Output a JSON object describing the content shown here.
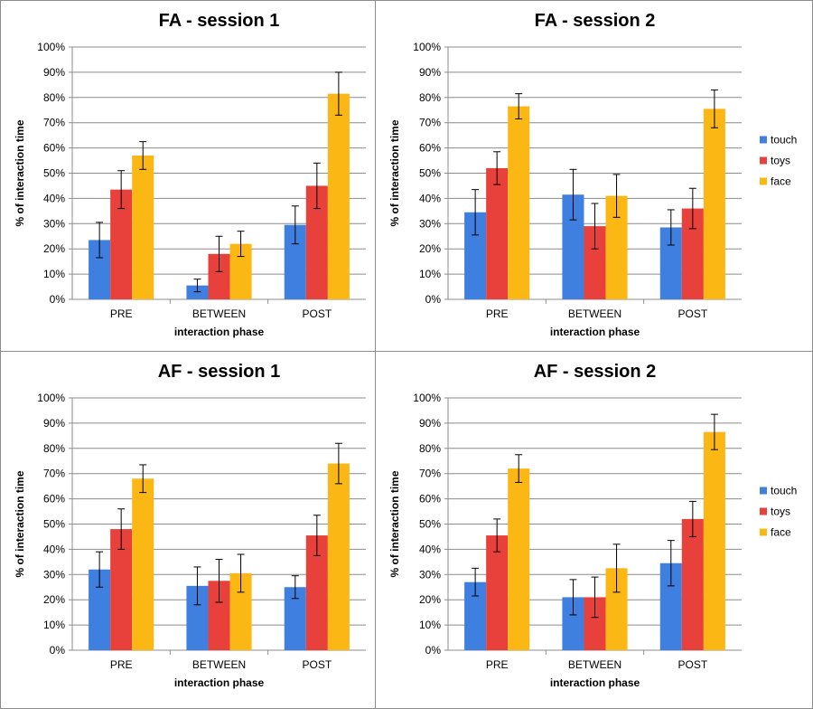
{
  "chart_data": [
    {
      "type": "bar",
      "title": "FA - session 1",
      "xlabel": "interaction phase",
      "ylabel": "% of interaction time",
      "ylim": [
        0,
        100
      ],
      "yticks": [
        "0%",
        "10%",
        "20%",
        "30%",
        "40%",
        "50%",
        "60%",
        "70%",
        "80%",
        "90%",
        "100%"
      ],
      "categories": [
        "PRE",
        "BETWEEN",
        "POST"
      ],
      "grid": true,
      "legend": "none",
      "series": [
        {
          "name": "touch",
          "color": "#3f7fe0",
          "values": [
            23.5,
            5.5,
            29.5
          ],
          "errors": [
            7,
            2.5,
            7.5
          ]
        },
        {
          "name": "toys",
          "color": "#e8413c",
          "values": [
            43.5,
            18,
            45
          ],
          "errors": [
            7.5,
            7,
            9
          ]
        },
        {
          "name": "face",
          "color": "#fbb714",
          "values": [
            57,
            22,
            81.5
          ],
          "errors": [
            5.5,
            5,
            8.5
          ]
        }
      ]
    },
    {
      "type": "bar",
      "title": "FA - session 2",
      "xlabel": "interaction phase",
      "ylabel": "% of interaction time",
      "ylim": [
        0,
        100
      ],
      "yticks": [
        "0%",
        "10%",
        "20%",
        "30%",
        "40%",
        "50%",
        "60%",
        "70%",
        "80%",
        "90%",
        "100%"
      ],
      "categories": [
        "PRE",
        "BETWEEN",
        "POST"
      ],
      "grid": true,
      "legend": "right",
      "series": [
        {
          "name": "touch",
          "color": "#3f7fe0",
          "values": [
            34.5,
            41.5,
            28.5
          ],
          "errors": [
            9,
            10,
            7
          ]
        },
        {
          "name": "toys",
          "color": "#e8413c",
          "values": [
            52,
            29,
            36
          ],
          "errors": [
            6.5,
            9,
            8
          ]
        },
        {
          "name": "face",
          "color": "#fbb714",
          "values": [
            76.5,
            41,
            75.5
          ],
          "errors": [
            5,
            8.5,
            7.5
          ]
        }
      ]
    },
    {
      "type": "bar",
      "title": "AF - session 1",
      "xlabel": "interaction phase",
      "ylabel": "% of interaction time",
      "ylim": [
        0,
        100
      ],
      "yticks": [
        "0%",
        "10%",
        "20%",
        "30%",
        "40%",
        "50%",
        "60%",
        "70%",
        "80%",
        "90%",
        "100%"
      ],
      "categories": [
        "PRE",
        "BETWEEN",
        "POST"
      ],
      "grid": true,
      "legend": "none",
      "series": [
        {
          "name": "touch",
          "color": "#3f7fe0",
          "values": [
            32,
            25.5,
            25
          ],
          "errors": [
            7,
            7.5,
            4.5
          ]
        },
        {
          "name": "toys",
          "color": "#e8413c",
          "values": [
            48,
            27.5,
            45.5
          ],
          "errors": [
            8,
            8.5,
            8
          ]
        },
        {
          "name": "face",
          "color": "#fbb714",
          "values": [
            68,
            30.5,
            74
          ],
          "errors": [
            5.5,
            7.5,
            8
          ]
        }
      ]
    },
    {
      "type": "bar",
      "title": "AF - session 2",
      "xlabel": "interaction phase",
      "ylabel": "% of interaction time",
      "ylim": [
        0,
        100
      ],
      "yticks": [
        "0%",
        "10%",
        "20%",
        "30%",
        "40%",
        "50%",
        "60%",
        "70%",
        "80%",
        "90%",
        "100%"
      ],
      "categories": [
        "PRE",
        "BETWEEN",
        "POST"
      ],
      "grid": true,
      "legend": "right",
      "series": [
        {
          "name": "touch",
          "color": "#3f7fe0",
          "values": [
            27,
            21,
            34.5
          ],
          "errors": [
            5.5,
            7,
            9
          ]
        },
        {
          "name": "toys",
          "color": "#e8413c",
          "values": [
            45.5,
            21,
            52
          ],
          "errors": [
            6.5,
            8,
            7
          ]
        },
        {
          "name": "face",
          "color": "#fbb714",
          "values": [
            72,
            32.5,
            86.5
          ],
          "errors": [
            5.5,
            9.5,
            7
          ]
        }
      ]
    }
  ]
}
